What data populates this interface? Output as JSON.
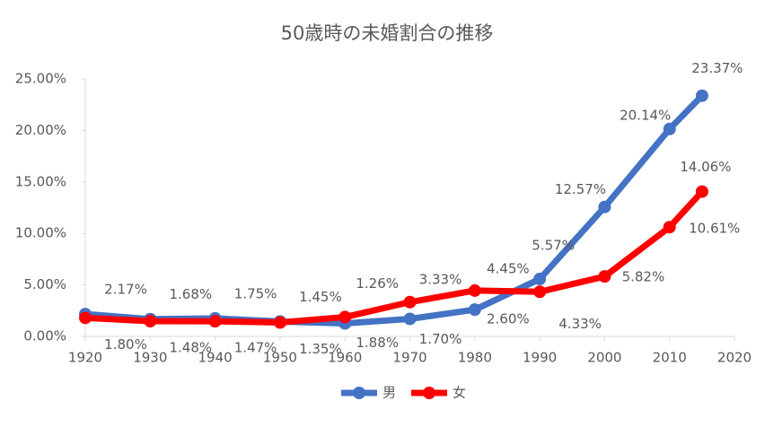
{
  "chart_data": {
    "type": "line",
    "title": "50歳時の未婚割合の推移",
    "x": [
      1920,
      1930,
      1940,
      1950,
      1960,
      1970,
      1980,
      1990,
      2000,
      2010,
      2015
    ],
    "series": [
      {
        "name": "男",
        "color": "#4472c4",
        "values": [
          2.17,
          1.68,
          1.75,
          1.45,
          1.26,
          1.7,
          2.6,
          5.57,
          12.57,
          20.14,
          23.37
        ],
        "value_labels": [
          "2.17%",
          "1.68%",
          "1.75%",
          "1.45%",
          "1.26%",
          "1.70%",
          "2.60%",
          "5.57%",
          "12.57%",
          "20.14%",
          "23.37%"
        ]
      },
      {
        "name": "女",
        "color": "#ff0000",
        "values": [
          1.8,
          1.48,
          1.47,
          1.35,
          1.88,
          3.33,
          4.45,
          4.33,
          5.82,
          10.61,
          14.06
        ],
        "value_labels": [
          "1.80%",
          "1.48%",
          "1.47%",
          "1.35%",
          "1.88%",
          "3.33%",
          "4.45%",
          "4.33%",
          "5.82%",
          "10.61%",
          "14.06%"
        ]
      }
    ],
    "xlim": [
      1920,
      2020
    ],
    "xticks": [
      1920,
      1930,
      1940,
      1950,
      1960,
      1970,
      1980,
      1990,
      2000,
      2010,
      2020
    ],
    "ylim": [
      0,
      25
    ],
    "yticks": [
      {
        "value": 0,
        "label": "0.00%"
      },
      {
        "value": 5,
        "label": "5.00%"
      },
      {
        "value": 10,
        "label": "10.00%"
      },
      {
        "value": 15,
        "label": "15.00%"
      },
      {
        "value": 20,
        "label": "20.00%"
      },
      {
        "value": 25,
        "label": "25.00%"
      }
    ],
    "legend": "bottom"
  }
}
